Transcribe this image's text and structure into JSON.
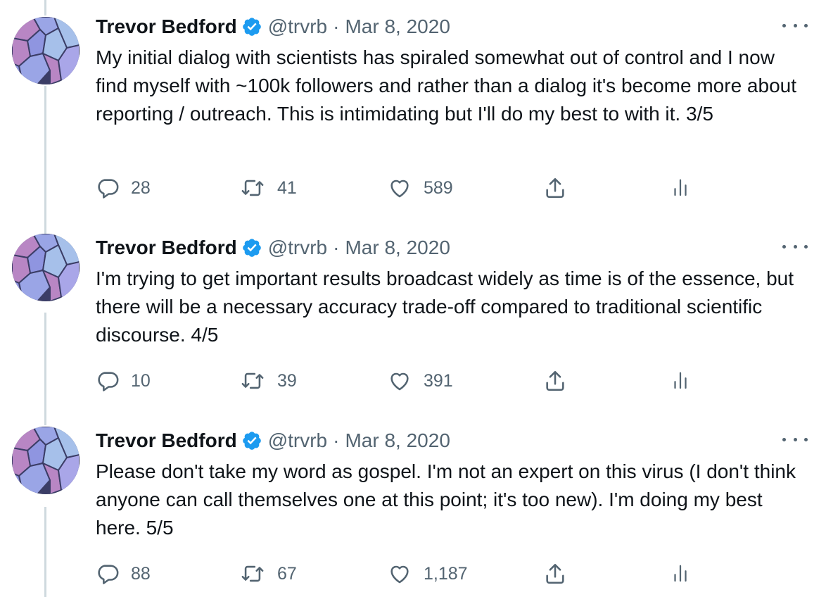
{
  "tweets": [
    {
      "name": "Trevor Bedford",
      "handle": "@trvrb",
      "separator": "·",
      "date": "Mar 8, 2020",
      "text": "My initial dialog with scientists has spiraled somewhat out of control and I now find myself with ~100k followers and rather than a dialog it's become more about reporting / outreach. This is intimidating but I'll do my best to with it. 3/5",
      "replies": "28",
      "retweets": "41",
      "likes": "589"
    },
    {
      "name": "Trevor Bedford",
      "handle": "@trvrb",
      "separator": "·",
      "date": "Mar 8, 2020",
      "text": "I'm trying to get important results broadcast widely as time is of the essence, but there will be a necessary accuracy trade-off compared to traditional scientific discourse. 4/5",
      "replies": "10",
      "retweets": "39",
      "likes": "391"
    },
    {
      "name": "Trevor Bedford",
      "handle": "@trvrb",
      "separator": "·",
      "date": "Mar 8, 2020",
      "text": "Please don't take my word as gospel. I'm not an expert on this virus (I don't think anyone can call themselves one at this point; it's too new). I'm doing my best here. 5/5",
      "replies": "88",
      "retweets": "67",
      "likes": "1,187"
    }
  ],
  "icons": {
    "verified": "verified-badge-icon",
    "more": "more-options-icon",
    "reply": "reply-icon",
    "retweet": "retweet-icon",
    "like": "heart-icon",
    "share": "share-icon",
    "analytics": "analytics-icon"
  },
  "colors": {
    "text": "#0f1419",
    "secondary": "#536471",
    "verified": "#1d9bf0",
    "thread_line": "#cfd9de"
  }
}
